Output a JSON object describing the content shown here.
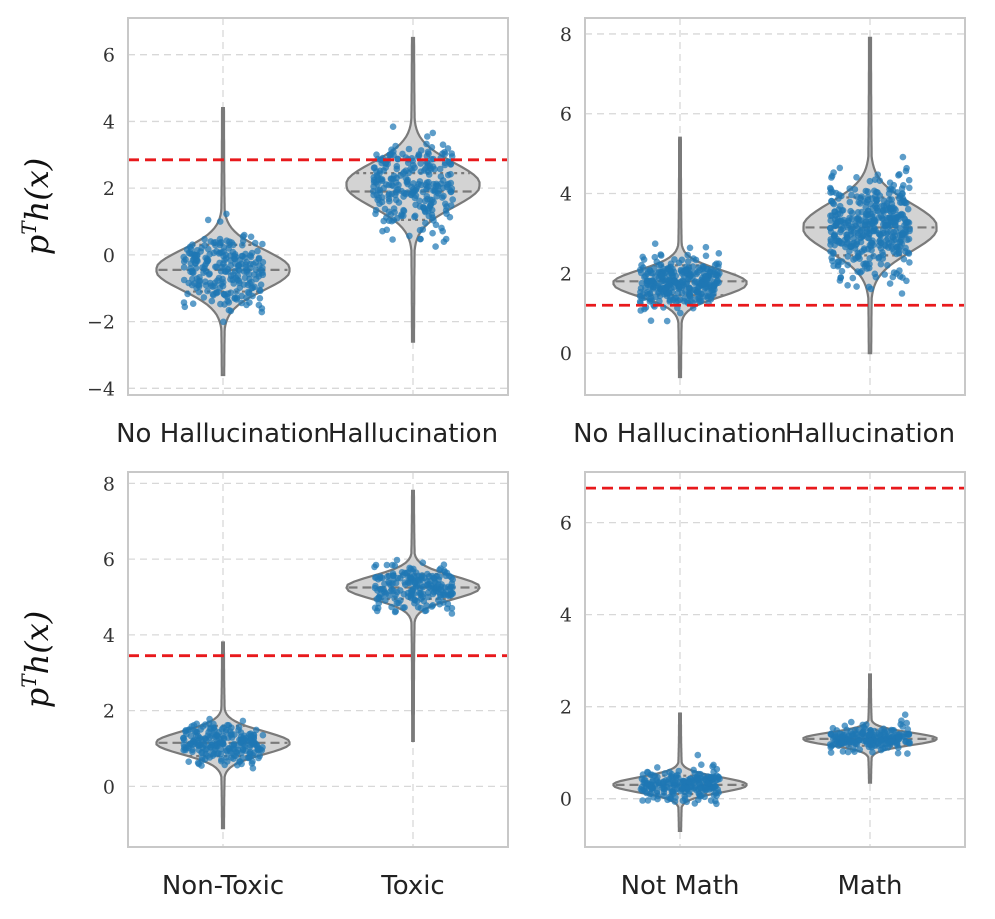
{
  "chart_data": [
    {
      "type": "violin",
      "ylabel": "p^T h(x)",
      "ylim": [
        -4.2,
        7.1
      ],
      "yticks": [
        -4,
        -2,
        0,
        2,
        4,
        6
      ],
      "grid": true,
      "threshold": 2.85,
      "categories": [
        "No Hallucination",
        "Hallucination"
      ],
      "series": [
        {
          "name": "No Hallucination",
          "median": -0.45,
          "q1": -1.1,
          "q3": 0.3,
          "min": -3.6,
          "max": 4.4,
          "mode": -0.45,
          "width": 0.35,
          "spread": 1.1,
          "n": 240,
          "pmin": -2.8,
          "pmax": 3.5
        },
        {
          "name": "Hallucination",
          "median": 1.9,
          "q1": 1.05,
          "q3": 2.45,
          "min": -2.6,
          "max": 6.5,
          "mode": 2.1,
          "width": 0.35,
          "spread": 1.2,
          "n": 260,
          "pmin": -1.5,
          "pmax": 5.4
        }
      ]
    },
    {
      "type": "violin",
      "ylabel": "",
      "ylim": [
        -1.05,
        8.4
      ],
      "yticks": [
        0,
        2,
        4,
        6,
        8
      ],
      "grid": true,
      "threshold": 1.2,
      "categories": [
        "No Hallucination",
        "Hallucination"
      ],
      "series": [
        {
          "name": "No Hallucination",
          "median": 1.8,
          "q1": 1.45,
          "q3": 2.2,
          "min": -0.6,
          "max": 5.4,
          "mode": 1.75,
          "width": 0.35,
          "spread": 0.6,
          "n": 320,
          "pmin": 0.0,
          "pmax": 4.8
        },
        {
          "name": "Hallucination",
          "median": 3.15,
          "q1": 2.45,
          "q3": 3.9,
          "min": 0.0,
          "max": 7.9,
          "mode": 3.15,
          "width": 0.35,
          "spread": 1.1,
          "n": 420,
          "pmin": 1.0,
          "pmax": 6.9
        }
      ]
    },
    {
      "type": "violin",
      "ylabel": "p^T h(x)",
      "ylim": [
        -1.6,
        8.3
      ],
      "yticks": [
        0,
        2,
        4,
        6,
        8
      ],
      "grid": true,
      "threshold": 3.45,
      "categories": [
        "Non-Toxic",
        "Toxic"
      ],
      "series": [
        {
          "name": "Non-Toxic",
          "median": 1.15,
          "q1": 0.8,
          "q3": 1.6,
          "min": -1.1,
          "max": 3.8,
          "mode": 1.15,
          "width": 0.35,
          "spread": 0.55,
          "n": 220,
          "pmin": -0.6,
          "pmax": 3.3
        },
        {
          "name": "Toxic",
          "median": 5.25,
          "q1": 4.95,
          "q3": 5.6,
          "min": 1.2,
          "max": 7.8,
          "mode": 5.25,
          "width": 0.35,
          "spread": 0.55,
          "n": 200,
          "pmin": 1.8,
          "pmax": 7.2
        }
      ]
    },
    {
      "type": "violin",
      "ylabel": "",
      "ylim": [
        -1.05,
        7.1
      ],
      "yticks": [
        0,
        2,
        4,
        6
      ],
      "grid": true,
      "threshold": 6.75,
      "categories": [
        "Not Math",
        "Math"
      ],
      "series": [
        {
          "name": "Not Math",
          "median": 0.3,
          "q1": 0.1,
          "q3": 0.5,
          "min": -0.7,
          "max": 1.85,
          "mode": 0.3,
          "width": 0.35,
          "spread": 0.3,
          "n": 220,
          "pmin": -0.45,
          "pmax": 1.6
        },
        {
          "name": "Math",
          "median": 1.3,
          "q1": 1.15,
          "q3": 1.5,
          "min": 0.35,
          "max": 2.7,
          "mode": 1.3,
          "width": 0.35,
          "spread": 0.25,
          "n": 200,
          "pmin": 0.6,
          "pmax": 2.45
        }
      ]
    }
  ],
  "colors": {
    "violin_fill": "#d3d3d3",
    "violin_edge": "#7a7a7a",
    "points": "#1f77b4",
    "threshold": "#e8191c",
    "grid": "#d8d8d8",
    "frame": "#c8c8c8"
  }
}
